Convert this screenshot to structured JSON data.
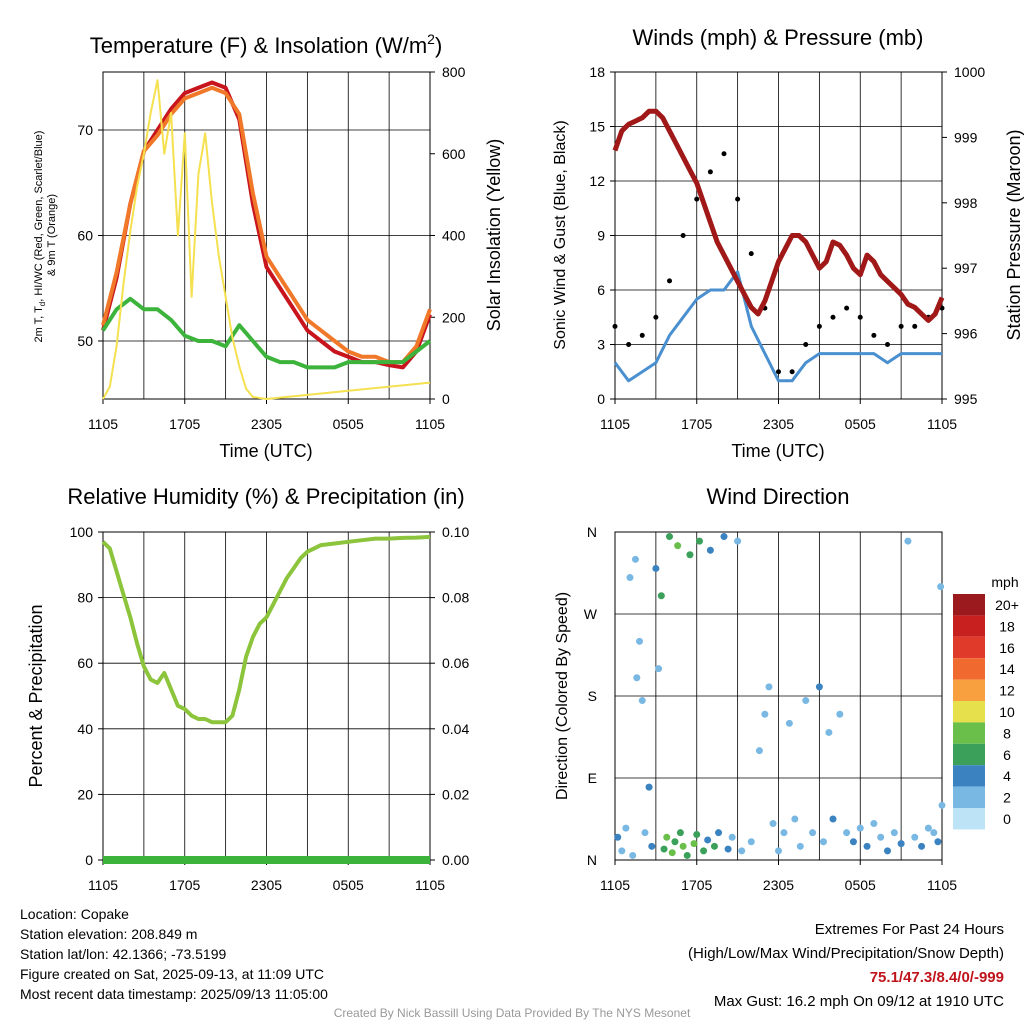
{
  "chart_data": [
    {
      "type": "line",
      "title": "Temperature (F) & Insolation (W/m²)",
      "xlabel": "Time (UTC)",
      "ylabel": "2m T, T_d, HI/WC (Red, Green, Scarlet/Blue) & 9m T (Orange)",
      "y2label": "Solar Insolation (Yellow)",
      "x_ticks": [
        "1105",
        "1705",
        "2305",
        "0505",
        "1105"
      ],
      "ylim": [
        44.5,
        75.5
      ],
      "y_ticks": [
        50,
        60,
        70
      ],
      "y2lim": [
        0,
        800
      ],
      "y2_ticks": [
        0,
        200,
        400,
        600,
        800
      ],
      "grid": true,
      "series": [
        {
          "name": "2m T",
          "color": "#c8141c",
          "hours": [
            0,
            1,
            2,
            3,
            4,
            5,
            6,
            7,
            8,
            9,
            10,
            11,
            12,
            13,
            14,
            15,
            16,
            17,
            18,
            19,
            20,
            21,
            22,
            23,
            24
          ],
          "values": [
            51,
            56,
            63,
            68,
            70,
            72,
            73.5,
            74,
            74.5,
            74,
            71,
            63,
            57,
            55,
            53,
            51,
            50,
            49,
            48.5,
            48,
            48,
            47.7,
            47.5,
            49,
            52.5
          ]
        },
        {
          "name": "9m T",
          "color": "#f07828",
          "hours": [
            0,
            1,
            2,
            3,
            4,
            5,
            6,
            7,
            8,
            9,
            10,
            11,
            12,
            13,
            14,
            15,
            16,
            17,
            18,
            19,
            20,
            21,
            22,
            23,
            24
          ],
          "values": [
            51.5,
            56.5,
            63,
            68,
            69.5,
            71.5,
            73,
            73.5,
            74,
            73.5,
            71.5,
            64,
            58,
            56,
            54,
            52,
            51,
            50,
            49,
            48.5,
            48.5,
            48,
            48,
            49.5,
            53
          ]
        },
        {
          "name": "T_d",
          "color": "#3cb43c",
          "hours": [
            0,
            1,
            2,
            3,
            4,
            5,
            6,
            7,
            8,
            9,
            10,
            11,
            12,
            13,
            14,
            15,
            16,
            17,
            18,
            19,
            20,
            21,
            22,
            23,
            24
          ],
          "values": [
            51,
            53,
            54,
            53,
            53,
            52,
            50.5,
            50,
            50,
            49.5,
            51.5,
            50,
            48.5,
            48,
            48,
            47.5,
            47.5,
            47.5,
            48,
            48,
            48,
            48,
            48,
            49,
            50
          ]
        },
        {
          "name": "Solar Insolation",
          "color": "#f5e050",
          "axis": "y2",
          "hours": [
            0,
            0.5,
            1,
            1.5,
            2,
            2.5,
            3,
            3.5,
            4,
            4.5,
            5,
            5.5,
            6,
            6.5,
            7,
            7.5,
            8,
            8.5,
            9,
            9.5,
            10,
            10.5,
            11,
            12,
            24
          ],
          "values": [
            0,
            30,
            130,
            280,
            410,
            520,
            600,
            700,
            780,
            600,
            700,
            400,
            650,
            250,
            550,
            650,
            480,
            350,
            250,
            150,
            80,
            25,
            5,
            0,
            40
          ]
        }
      ]
    },
    {
      "type": "scatter",
      "title": "Winds (mph) & Pressure (mb)",
      "xlabel": "Time (UTC)",
      "ylabel": "Sonic Wind & Gust (Blue, Black)",
      "y2label": "Station Pressure (Maroon)",
      "x_ticks": [
        "1105",
        "1705",
        "2305",
        "0505",
        "1105"
      ],
      "ylim": [
        0,
        18
      ],
      "y_ticks": [
        0,
        3,
        6,
        9,
        12,
        15,
        18
      ],
      "y2lim": [
        995,
        1000
      ],
      "y2_ticks": [
        995,
        996,
        997,
        998,
        999,
        1000
      ],
      "grid": true,
      "series": [
        {
          "name": "Sonic Wind",
          "color": "#4a90d0",
          "hours": [
            0,
            1,
            2,
            3,
            4,
            5,
            6,
            7,
            8,
            9,
            10,
            11,
            12,
            13,
            14,
            15,
            16,
            17,
            18,
            19,
            20,
            21,
            22,
            23,
            24
          ],
          "values": [
            2,
            1,
            1.5,
            2,
            3.5,
            4.5,
            5.5,
            6,
            6,
            7,
            4,
            2.5,
            1,
            1,
            2,
            2.5,
            2.5,
            2.5,
            2.5,
            2.5,
            2,
            2.5,
            2.5,
            2.5,
            2.5
          ]
        },
        {
          "name": "Gust",
          "color": "#000000",
          "hours": [
            0,
            1,
            2,
            3,
            4,
            5,
            6,
            7,
            8,
            9,
            10,
            11,
            12,
            13,
            14,
            15,
            16,
            17,
            18,
            19,
            20,
            21,
            22,
            23,
            24
          ],
          "values": [
            4,
            3,
            3.5,
            4.5,
            6.5,
            9,
            11,
            12.5,
            13.5,
            11,
            8,
            5,
            1.5,
            1.5,
            3,
            4,
            4.5,
            5,
            4.5,
            3.5,
            3,
            4,
            4,
            4.5,
            5
          ]
        },
        {
          "name": "Station Pressure",
          "color": "#a01818",
          "axis": "y2",
          "hours": [
            0,
            0.5,
            1,
            1.5,
            2,
            2.5,
            3,
            3.5,
            4,
            4.5,
            5,
            5.5,
            6,
            6.5,
            7,
            7.5,
            8,
            8.5,
            9,
            9.5,
            10,
            10.5,
            11,
            11.5,
            12,
            12.5,
            13,
            13.5,
            14,
            14.5,
            15,
            15.5,
            16,
            16.5,
            17,
            17.5,
            18,
            18.5,
            19,
            19.5,
            20,
            20.5,
            21,
            21.5,
            22,
            22.5,
            23,
            23.5,
            24
          ],
          "values": [
            998.8,
            999.1,
            999.2,
            999.25,
            999.3,
            999.4,
            999.4,
            999.3,
            999.1,
            998.9,
            998.7,
            998.5,
            998.3,
            998.0,
            997.7,
            997.4,
            997.2,
            997.0,
            996.8,
            996.6,
            996.4,
            996.3,
            996.5,
            996.8,
            997.1,
            997.3,
            997.5,
            997.5,
            997.4,
            997.2,
            997.0,
            997.1,
            997.4,
            997.35,
            997.2,
            997.0,
            996.9,
            997.2,
            997.1,
            996.9,
            996.8,
            996.7,
            996.6,
            996.45,
            996.4,
            996.3,
            996.2,
            996.3,
            996.55
          ]
        }
      ]
    },
    {
      "type": "line",
      "title": "Relative Humidity (%) & Precipitation (in)",
      "xlabel": "",
      "ylabel": "Percent & Precipitation",
      "x_ticks": [
        "1105",
        "1705",
        "2305",
        "0505",
        "1105"
      ],
      "ylim": [
        0,
        100
      ],
      "y_ticks": [
        0,
        20,
        40,
        60,
        80,
        100
      ],
      "y2lim": [
        0,
        0.1
      ],
      "y2_ticks": [
        "0.00",
        "0.02",
        "0.04",
        "0.06",
        "0.08",
        "0.10"
      ],
      "grid": true,
      "series": [
        {
          "name": "Relative Humidity",
          "color": "#8cc43c",
          "hours": [
            0,
            0.5,
            1,
            1.5,
            2,
            2.5,
            3,
            3.5,
            4,
            4.5,
            5,
            5.5,
            6,
            6.5,
            7,
            7.5,
            8,
            8.5,
            9,
            9.5,
            10,
            10.5,
            11,
            11.5,
            12,
            12.5,
            13,
            13.5,
            14,
            14.5,
            15,
            15.5,
            16,
            17,
            18,
            19,
            20,
            21,
            22,
            23,
            24
          ],
          "values": [
            97,
            95,
            88,
            81,
            74,
            66,
            59,
            55,
            54,
            57,
            52,
            47,
            46,
            44,
            43,
            43,
            42,
            42,
            42,
            44,
            52,
            62,
            68,
            72,
            74,
            78,
            82,
            86,
            89,
            92,
            94,
            95,
            96,
            96.5,
            97,
            97.5,
            98,
            98,
            98.2,
            98.3,
            98.5
          ]
        },
        {
          "name": "Precipitation",
          "color": "#3cb43c",
          "axis": "y2",
          "hours": [
            0,
            24
          ],
          "values": [
            0,
            0
          ]
        }
      ]
    },
    {
      "type": "scatter",
      "title": "Wind Direction",
      "xlabel": "",
      "ylabel": "Direction (Colored By Speed)",
      "x_ticks": [
        "1105",
        "1705",
        "2305",
        "0505",
        "1105"
      ],
      "y_ticks": [
        "N",
        "E",
        "S",
        "W",
        "N"
      ],
      "ylim": [
        0,
        360
      ],
      "grid": true,
      "legend": {
        "title": "mph",
        "placement": "right",
        "labels": [
          "20+",
          "18",
          "16",
          "14",
          "12",
          "10",
          "8",
          "6",
          "4",
          "2",
          "0"
        ],
        "colors": [
          "#9a1a1e",
          "#c8201e",
          "#e03a2a",
          "#f06a30",
          "#f8a040",
          "#e6e04c",
          "#6abf4b",
          "#3aa05a",
          "#3a82c0",
          "#7ab8e4",
          "#bde3f7"
        ]
      },
      "points": [
        {
          "h": 0.2,
          "dir": 25,
          "spd": 3
        },
        {
          "h": 0.5,
          "dir": 10,
          "spd": 2
        },
        {
          "h": 0.8,
          "dir": 35,
          "spd": 1
        },
        {
          "h": 1.1,
          "dir": 310,
          "spd": 1
        },
        {
          "h": 1.3,
          "dir": 5,
          "spd": 2
        },
        {
          "h": 1.5,
          "dir": 330,
          "spd": 1
        },
        {
          "h": 1.6,
          "dir": 200,
          "spd": 1
        },
        {
          "h": 1.8,
          "dir": 240,
          "spd": 1
        },
        {
          "h": 2.0,
          "dir": 175,
          "spd": 2
        },
        {
          "h": 2.2,
          "dir": 30,
          "spd": 2
        },
        {
          "h": 2.5,
          "dir": 80,
          "spd": 3
        },
        {
          "h": 2.7,
          "dir": 15,
          "spd": 4
        },
        {
          "h": 3.0,
          "dir": 320,
          "spd": 4
        },
        {
          "h": 3.2,
          "dir": 210,
          "spd": 2
        },
        {
          "h": 3.4,
          "dir": 290,
          "spd": 6
        },
        {
          "h": 3.6,
          "dir": 12,
          "spd": 6
        },
        {
          "h": 3.8,
          "dir": 25,
          "spd": 7
        },
        {
          "h": 4.0,
          "dir": 355,
          "spd": 6
        },
        {
          "h": 4.2,
          "dir": 8,
          "spd": 7
        },
        {
          "h": 4.4,
          "dir": 20,
          "spd": 6
        },
        {
          "h": 4.6,
          "dir": 345,
          "spd": 7
        },
        {
          "h": 4.8,
          "dir": 30,
          "spd": 5
        },
        {
          "h": 5.0,
          "dir": 15,
          "spd": 7
        },
        {
          "h": 5.3,
          "dir": 5,
          "spd": 6
        },
        {
          "h": 5.5,
          "dir": 335,
          "spd": 5
        },
        {
          "h": 5.8,
          "dir": 18,
          "spd": 8
        },
        {
          "h": 6.0,
          "dir": 28,
          "spd": 6
        },
        {
          "h": 6.2,
          "dir": 350,
          "spd": 6
        },
        {
          "h": 6.5,
          "dir": 10,
          "spd": 5
        },
        {
          "h": 6.8,
          "dir": 22,
          "spd": 4
        },
        {
          "h": 7.0,
          "dir": 340,
          "spd": 4
        },
        {
          "h": 7.3,
          "dir": 15,
          "spd": 5
        },
        {
          "h": 7.6,
          "dir": 30,
          "spd": 4
        },
        {
          "h": 8.0,
          "dir": 355,
          "spd": 4
        },
        {
          "h": 8.3,
          "dir": 12,
          "spd": 3
        },
        {
          "h": 8.6,
          "dir": 25,
          "spd": 2
        },
        {
          "h": 9.0,
          "dir": 350,
          "spd": 2
        },
        {
          "h": 9.3,
          "dir": 10,
          "spd": 1
        },
        {
          "h": 10.0,
          "dir": 20,
          "spd": 1
        },
        {
          "h": 10.6,
          "dir": 120,
          "spd": 1
        },
        {
          "h": 11.0,
          "dir": 160,
          "spd": 1
        },
        {
          "h": 11.3,
          "dir": 190,
          "spd": 1
        },
        {
          "h": 11.6,
          "dir": 40,
          "spd": 1
        },
        {
          "h": 12.0,
          "dir": 10,
          "spd": 1
        },
        {
          "h": 12.4,
          "dir": 30,
          "spd": 1
        },
        {
          "h": 12.8,
          "dir": 150,
          "spd": 2
        },
        {
          "h": 13.2,
          "dir": 45,
          "spd": 1
        },
        {
          "h": 13.6,
          "dir": 15,
          "spd": 1
        },
        {
          "h": 14.0,
          "dir": 175,
          "spd": 2
        },
        {
          "h": 14.5,
          "dir": 30,
          "spd": 2
        },
        {
          "h": 15.0,
          "dir": 190,
          "spd": 3
        },
        {
          "h": 15.3,
          "dir": 20,
          "spd": 2
        },
        {
          "h": 15.7,
          "dir": 140,
          "spd": 2
        },
        {
          "h": 16.0,
          "dir": 45,
          "spd": 3
        },
        {
          "h": 16.5,
          "dir": 160,
          "spd": 1
        },
        {
          "h": 17.0,
          "dir": 30,
          "spd": 2
        },
        {
          "h": 17.5,
          "dir": 20,
          "spd": 3
        },
        {
          "h": 18.0,
          "dir": 35,
          "spd": 2
        },
        {
          "h": 18.5,
          "dir": 15,
          "spd": 3
        },
        {
          "h": 19.0,
          "dir": 40,
          "spd": 2
        },
        {
          "h": 19.5,
          "dir": 25,
          "spd": 2
        },
        {
          "h": 20.0,
          "dir": 10,
          "spd": 3
        },
        {
          "h": 20.5,
          "dir": 30,
          "spd": 2
        },
        {
          "h": 21.0,
          "dir": 18,
          "spd": 3
        },
        {
          "h": 21.5,
          "dir": 350,
          "spd": 1
        },
        {
          "h": 22.0,
          "dir": 25,
          "spd": 2
        },
        {
          "h": 22.5,
          "dir": 15,
          "spd": 3
        },
        {
          "h": 23.0,
          "dir": 35,
          "spd": 2
        },
        {
          "h": 23.4,
          "dir": 30,
          "spd": 2
        },
        {
          "h": 23.7,
          "dir": 20,
          "spd": 3
        },
        {
          "h": 23.9,
          "dir": 300,
          "spd": 1
        },
        {
          "h": 24.0,
          "dir": 60,
          "spd": 2
        }
      ]
    }
  ],
  "info": {
    "location": "Location: Copake",
    "elevation": "Station elevation: 208.849 m",
    "latlon": "Station lat/lon: 42.1366; -73.5199",
    "created": "Figure created on Sat, 2025-09-13, at 11:09 UTC",
    "recent": "Most recent data timestamp: 2025/09/13 11:05:00"
  },
  "extremes": {
    "title": "Extremes For Past 24 Hours",
    "subtitle": "(High/Low/Max Wind/Precipitation/Snow Depth)",
    "values": "75.1/47.3/8.4/0/-999",
    "max_gust": "Max Gust: 16.2 mph On 09/12 at 1910 UTC"
  },
  "credit": "Created By Nick Bassill Using Data Provided By The NYS Mesonet"
}
